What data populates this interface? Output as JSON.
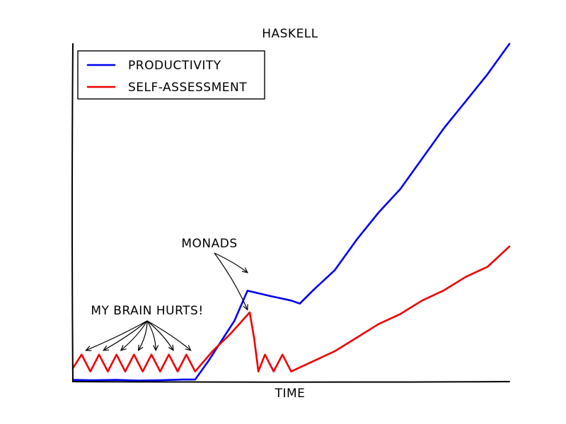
{
  "chart_data": {
    "type": "line",
    "style": "xkcd",
    "title": "HASKELL",
    "xlabel": "TIME",
    "ylabel": "",
    "xlim": [
      0,
      100
    ],
    "ylim": [
      0,
      100
    ],
    "grid": false,
    "legend": {
      "placement": "top-left",
      "frame": true
    },
    "series": [
      {
        "name": "PRODUCTIVITY",
        "color": "#0000ee",
        "x": [
          0,
          5,
          10,
          15,
          20,
          25,
          28,
          31,
          34,
          37,
          40,
          45,
          50,
          52,
          55,
          60,
          65,
          70,
          75,
          80,
          85,
          90,
          95,
          100
        ],
        "y": [
          0.5,
          0.4,
          0.5,
          0.3,
          0.4,
          0.6,
          0.6,
          6,
          12,
          18,
          26.9,
          25.4,
          24,
          23.1,
          27,
          33,
          42,
          50,
          57,
          66,
          75,
          83,
          91,
          100
        ]
      },
      {
        "name": "SELF-ASSESSMENT",
        "color": "#ee0000",
        "x": [
          0,
          2,
          4,
          6,
          8,
          10,
          12,
          14,
          16,
          18,
          20,
          22,
          24,
          26,
          28,
          32,
          36,
          40.5,
          41.5,
          42.5,
          44,
          46,
          48,
          50,
          55,
          60,
          65,
          70,
          75,
          80,
          85,
          90,
          95,
          100
        ],
        "y": [
          4,
          8,
          3,
          8,
          3,
          8,
          3,
          8,
          3,
          8,
          3,
          8,
          3,
          8,
          3,
          9,
          14,
          20.5,
          13,
          3,
          8,
          3,
          8,
          3,
          6,
          9,
          13,
          17,
          20,
          24,
          27,
          31,
          34,
          40
        ]
      }
    ],
    "annotations": [
      {
        "text": "MY BRAIN HURTS!",
        "targets": [
          [
            3,
            8
          ],
          [
            7,
            8
          ],
          [
            11,
            8
          ],
          [
            15,
            8
          ],
          [
            19,
            8
          ],
          [
            23,
            8
          ],
          [
            27,
            8
          ]
        ]
      },
      {
        "text": "MONADS",
        "targets": [
          [
            40,
            31
          ],
          [
            40,
            20
          ]
        ]
      }
    ]
  }
}
